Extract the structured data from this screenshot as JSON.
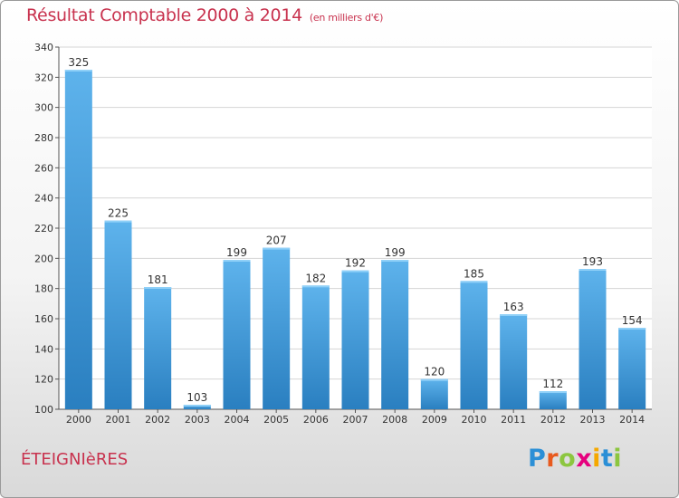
{
  "title": "Résultat Comptable 2000 à 2014",
  "unit_label": "(en milliers d'€)",
  "commune": "ÉTEIGNIèRES",
  "logo": {
    "letters": [
      "P",
      "r",
      "o",
      "x",
      "i",
      "t",
      "i"
    ],
    "colors": [
      "#2b8fd6",
      "#e85a1e",
      "#8cc63f",
      "#e6007e",
      "#f5a800",
      "#2b8fd6",
      "#8cc63f"
    ]
  },
  "colors": {
    "bar_light": "#5eb3ec",
    "bar_dark": "#2a7fc0",
    "accent": "#c8324e"
  },
  "chart_data": {
    "type": "bar",
    "title": "Résultat Comptable 2000 à 2014",
    "xlabel": "",
    "ylabel": "en milliers d'€",
    "ylim": [
      100,
      340
    ],
    "yticks": [
      100,
      120,
      140,
      160,
      180,
      200,
      220,
      240,
      260,
      280,
      300,
      320,
      340
    ],
    "grid": true,
    "categories": [
      "2000",
      "2001",
      "2002",
      "2003",
      "2004",
      "2005",
      "2006",
      "2007",
      "2008",
      "2009",
      "2010",
      "2011",
      "2012",
      "2013",
      "2014"
    ],
    "values": [
      325,
      225,
      181,
      103,
      199,
      207,
      182,
      192,
      199,
      120,
      185,
      163,
      112,
      193,
      154
    ]
  }
}
